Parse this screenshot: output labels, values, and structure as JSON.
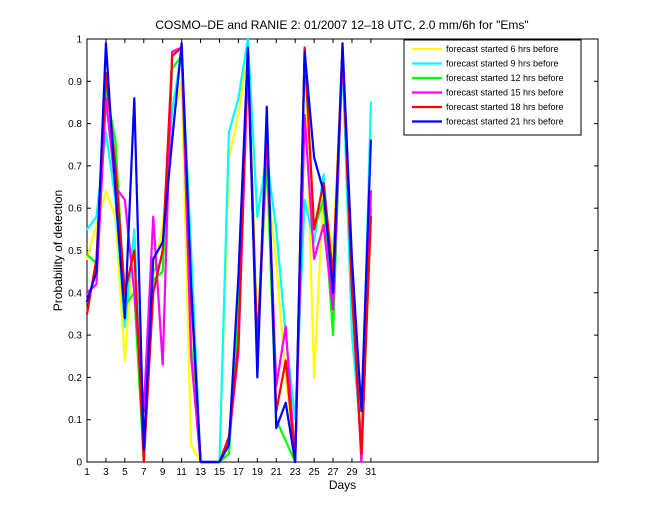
{
  "chart_data": {
    "type": "line",
    "title": "COSMO–DE and RANIE 2: 01/2007 12–18 UTC, 2.0 mm/6h for \"Ems\"",
    "xlabel": "Days",
    "ylabel": "Probability of detection",
    "xlim": [
      1,
      55
    ],
    "ylim": [
      0,
      1
    ],
    "xticks": [
      1,
      3,
      5,
      7,
      9,
      11,
      13,
      15,
      17,
      19,
      21,
      23,
      25,
      27,
      29,
      31
    ],
    "yticks": [
      0,
      0.1,
      0.2,
      0.3,
      0.4,
      0.5,
      0.6,
      0.7,
      0.8,
      0.9,
      1
    ],
    "grid": false,
    "legend_position": "top-right",
    "series": [
      {
        "name": "forecast started 6 hrs before",
        "color": "#ffff00",
        "points": [
          [
            1,
            0.48
          ],
          [
            2,
            0.56
          ],
          [
            3,
            0.64
          ],
          [
            4,
            0.58
          ],
          [
            5,
            0.24
          ],
          [
            6,
            0.55
          ],
          [
            7,
            0.0
          ],
          [
            8,
            0.44
          ],
          [
            9,
            0.56
          ],
          [
            10,
            0.8
          ],
          [
            11,
            0.9
          ],
          [
            12,
            0.04
          ],
          [
            13,
            0.0
          ],
          [
            15,
            0.0
          ],
          [
            16,
            0.72
          ],
          [
            17,
            0.82
          ],
          [
            18,
            0.98
          ],
          [
            19,
            0.3
          ],
          [
            20,
            0.68
          ],
          [
            21,
            0.47
          ],
          [
            22,
            0.2
          ],
          [
            23,
            0.0
          ],
          [
            24,
            0.97
          ],
          [
            25,
            0.2
          ],
          [
            26,
            0.65
          ],
          [
            27,
            0.48
          ],
          [
            28,
            0.98
          ],
          [
            29,
            0.42
          ],
          [
            30,
            0.03
          ],
          [
            31,
            0.56
          ]
        ]
      },
      {
        "name": "forecast started 9 hrs before",
        "color": "#00ffff",
        "points": [
          [
            1,
            0.55
          ],
          [
            2,
            0.58
          ],
          [
            3,
            0.78
          ],
          [
            4,
            0.62
          ],
          [
            5,
            0.32
          ],
          [
            6,
            0.55
          ],
          [
            7,
            0.0
          ],
          [
            8,
            0.45
          ],
          [
            9,
            0.48
          ],
          [
            10,
            0.83
          ],
          [
            11,
            0.97
          ],
          [
            12,
            0.5
          ],
          [
            13,
            0.0
          ],
          [
            15,
            0.0
          ],
          [
            16,
            0.78
          ],
          [
            17,
            0.86
          ],
          [
            18,
            1.0
          ],
          [
            19,
            0.58
          ],
          [
            20,
            0.72
          ],
          [
            21,
            0.55
          ],
          [
            22,
            0.3
          ],
          [
            23,
            0.1
          ],
          [
            24,
            0.62
          ],
          [
            25,
            0.52
          ],
          [
            26,
            0.68
          ],
          [
            27,
            0.4
          ],
          [
            28,
            0.95
          ],
          [
            29,
            0.3
          ],
          [
            30,
            0.05
          ],
          [
            31,
            0.85
          ]
        ]
      },
      {
        "name": "forecast started 12 hrs before",
        "color": "#00ff00",
        "points": [
          [
            1,
            0.49
          ],
          [
            2,
            0.47
          ],
          [
            3,
            0.88
          ],
          [
            4,
            0.76
          ],
          [
            5,
            0.37
          ],
          [
            6,
            0.4
          ],
          [
            7,
            0.0
          ],
          [
            8,
            0.43
          ],
          [
            9,
            0.45
          ],
          [
            10,
            0.93
          ],
          [
            11,
            0.96
          ],
          [
            12,
            0.28
          ],
          [
            13,
            0.0
          ],
          [
            15,
            0.0
          ],
          [
            16,
            0.02
          ],
          [
            17,
            0.35
          ],
          [
            18,
            0.96
          ],
          [
            19,
            0.28
          ],
          [
            20,
            0.72
          ],
          [
            21,
            0.1
          ],
          [
            22,
            0.05
          ],
          [
            23,
            0.0
          ],
          [
            24,
            0.97
          ],
          [
            25,
            0.55
          ],
          [
            26,
            0.62
          ],
          [
            27,
            0.3
          ],
          [
            28,
            0.98
          ],
          [
            29,
            0.45
          ],
          [
            30,
            0.0
          ],
          [
            31,
            0.6
          ]
        ]
      },
      {
        "name": "forecast started 15 hrs before",
        "color": "#ff00ff",
        "points": [
          [
            1,
            0.4
          ],
          [
            2,
            0.42
          ],
          [
            3,
            0.86
          ],
          [
            4,
            0.65
          ],
          [
            5,
            0.62
          ],
          [
            6,
            0.4
          ],
          [
            7,
            0.12
          ],
          [
            8,
            0.58
          ],
          [
            9,
            0.23
          ],
          [
            10,
            0.97
          ],
          [
            11,
            0.98
          ],
          [
            12,
            0.25
          ],
          [
            13,
            0.0
          ],
          [
            15,
            0.0
          ],
          [
            16,
            0.05
          ],
          [
            17,
            0.26
          ],
          [
            18,
            0.94
          ],
          [
            19,
            0.24
          ],
          [
            20,
            0.77
          ],
          [
            21,
            0.18
          ],
          [
            22,
            0.32
          ],
          [
            23,
            0.0
          ],
          [
            24,
            0.82
          ],
          [
            25,
            0.48
          ],
          [
            26,
            0.56
          ],
          [
            27,
            0.36
          ],
          [
            28,
            0.97
          ],
          [
            29,
            0.42
          ],
          [
            30,
            0.0
          ],
          [
            31,
            0.64
          ]
        ]
      },
      {
        "name": "forecast started 18 hrs before",
        "color": "#ff0000",
        "points": [
          [
            1,
            0.35
          ],
          [
            2,
            0.48
          ],
          [
            3,
            0.92
          ],
          [
            4,
            0.7
          ],
          [
            5,
            0.4
          ],
          [
            6,
            0.5
          ],
          [
            7,
            0.0
          ],
          [
            8,
            0.4
          ],
          [
            9,
            0.5
          ],
          [
            10,
            0.96
          ],
          [
            11,
            0.98
          ],
          [
            12,
            0.4
          ],
          [
            13,
            0.0
          ],
          [
            15,
            0.0
          ],
          [
            16,
            0.06
          ],
          [
            17,
            0.28
          ],
          [
            18,
            0.97
          ],
          [
            19,
            0.26
          ],
          [
            20,
            0.8
          ],
          [
            21,
            0.12
          ],
          [
            22,
            0.24
          ],
          [
            23,
            0.0
          ],
          [
            24,
            0.98
          ],
          [
            25,
            0.55
          ],
          [
            26,
            0.66
          ],
          [
            27,
            0.44
          ],
          [
            28,
            0.98
          ],
          [
            29,
            0.4
          ],
          [
            30,
            0.02
          ],
          [
            31,
            0.58
          ]
        ]
      },
      {
        "name": "forecast started 21 hrs before",
        "color": "#0000ff",
        "points": [
          [
            1,
            0.38
          ],
          [
            2,
            0.45
          ],
          [
            3,
            0.99
          ],
          [
            4,
            0.64
          ],
          [
            5,
            0.34
          ],
          [
            6,
            0.86
          ],
          [
            7,
            0.03
          ],
          [
            8,
            0.48
          ],
          [
            9,
            0.52
          ],
          [
            10,
            0.76
          ],
          [
            11,
            0.99
          ],
          [
            12,
            0.42
          ],
          [
            13,
            0.0
          ],
          [
            15,
            0.0
          ],
          [
            16,
            0.04
          ],
          [
            17,
            0.44
          ],
          [
            18,
            0.98
          ],
          [
            19,
            0.2
          ],
          [
            20,
            0.84
          ],
          [
            21,
            0.08
          ],
          [
            22,
            0.14
          ],
          [
            23,
            0.0
          ],
          [
            24,
            0.97
          ],
          [
            25,
            0.72
          ],
          [
            26,
            0.64
          ],
          [
            27,
            0.4
          ],
          [
            28,
            0.99
          ],
          [
            29,
            0.48
          ],
          [
            30,
            0.12
          ],
          [
            31,
            0.76
          ]
        ]
      }
    ]
  }
}
